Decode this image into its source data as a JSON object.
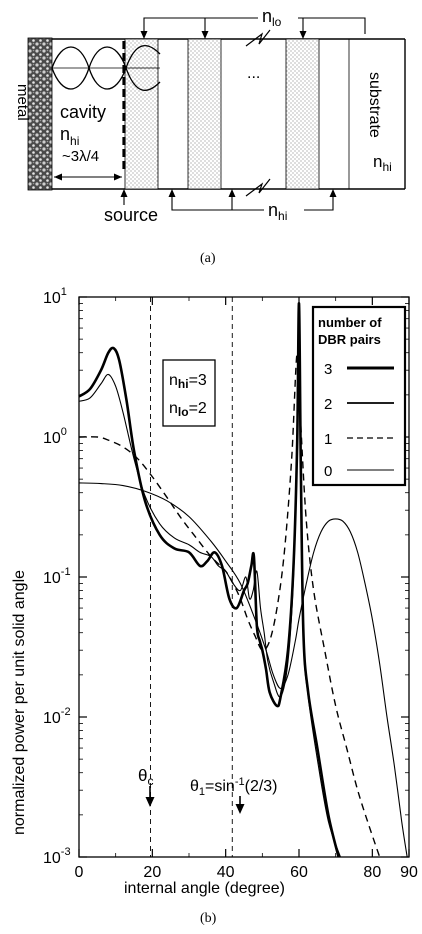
{
  "panel_a": {
    "metal": "metal",
    "substrate": "substrate",
    "cavity": "cavity",
    "cavity_index": "n",
    "cavity_index_sub": "hi",
    "cavity_length": "~3λ/4",
    "source": "source",
    "ellipsis": "...",
    "top_index": "n",
    "top_index_sub": "lo",
    "bottom_index": "n",
    "bottom_index_sub": "hi",
    "substrate_index": "n",
    "substrate_index_sub": "hi",
    "caption": "(a)"
  },
  "panel_b": {
    "caption": "(b)",
    "ylabel": "normalized power per unit solid angle",
    "xlabel": "internal angle (degree)",
    "x_ticks": [
      "0",
      "20",
      "40",
      "60",
      "80",
      "90"
    ],
    "y_ticks": [
      {
        "base": "10",
        "exp": "1"
      },
      {
        "base": "10",
        "exp": "0"
      },
      {
        "base": "10",
        "exp": "-1"
      },
      {
        "base": "10",
        "exp": "-2"
      },
      {
        "base": "10",
        "exp": "-3"
      }
    ],
    "param_box": {
      "line1_n": "n",
      "line1_sub": "hi",
      "line1_val": "=3",
      "line2_n": "n",
      "line2_sub": "lo",
      "line2_val": "=2"
    },
    "legend": {
      "title_line1": "number of",
      "title_line2": "DBR pairs",
      "entries": [
        "3",
        "2",
        "1",
        "0"
      ]
    },
    "annotations": {
      "theta_c": "θ",
      "theta_c_sub": "c",
      "theta1": "θ",
      "theta1_sub": "1",
      "theta1_eq": "=sin",
      "theta1_sup": "-1",
      "theta1_arg": "(2/3)"
    }
  },
  "chart_data": {
    "type": "line",
    "y_scale": "log",
    "xlabel": "internal angle (degree)",
    "ylabel": "normalized power per unit solid angle",
    "xlim": [
      0,
      90
    ],
    "ylim": [
      0.001,
      10
    ],
    "x_tick_values": [
      0,
      20,
      40,
      60,
      80,
      90
    ],
    "vlines": [
      19.5,
      41.8
    ],
    "series": [
      {
        "name": "3",
        "style": "thick",
        "x": [
          0,
          3,
          6,
          8,
          9.5,
          11,
          13,
          15,
          18,
          22,
          26,
          30,
          33,
          35,
          37,
          39,
          41,
          43,
          45,
          46,
          47,
          47.7,
          48.5,
          49.3,
          50,
          51,
          52,
          54,
          55,
          57,
          58.5,
          59.5,
          60,
          60.5,
          61.2,
          62.5,
          65,
          68,
          70.8
        ],
        "y": [
          1.95,
          2.2,
          3.0,
          4.0,
          4.3,
          3.5,
          1.8,
          0.8,
          0.35,
          0.2,
          0.16,
          0.15,
          0.12,
          0.13,
          0.15,
          0.12,
          0.07,
          0.06,
          0.08,
          0.09,
          0.12,
          0.14,
          0.045,
          0.035,
          0.03,
          0.022,
          0.015,
          0.012,
          0.014,
          0.03,
          0.12,
          0.9,
          9.0,
          0.6,
          0.04,
          0.015,
          0.006,
          0.002,
          0.001
        ]
      },
      {
        "name": "2",
        "style": "thin",
        "x": [
          0,
          3,
          6,
          8,
          10,
          12,
          15,
          18,
          22,
          26,
          30,
          33,
          36,
          38,
          40,
          42,
          44,
          45.5,
          46.5,
          47.5,
          48.5,
          49.5,
          50.5,
          51.5,
          53,
          55,
          57,
          58.5,
          59.5,
          60,
          60.5,
          61.2,
          62.5,
          65,
          68,
          71.3
        ],
        "y": [
          1.8,
          1.9,
          2.4,
          2.8,
          2.3,
          1.5,
          0.7,
          0.38,
          0.24,
          0.19,
          0.17,
          0.15,
          0.14,
          0.12,
          0.11,
          0.09,
          0.08,
          0.1,
          0.07,
          0.08,
          0.11,
          0.06,
          0.04,
          0.025,
          0.018,
          0.014,
          0.025,
          0.1,
          0.8,
          7.0,
          0.5,
          0.035,
          0.014,
          0.005,
          0.0018,
          0.001
        ]
      },
      {
        "name": "1",
        "style": "dashed",
        "x": [
          0,
          5,
          8,
          12,
          16,
          20,
          24,
          28,
          32,
          36,
          40,
          42,
          44,
          46,
          48,
          50,
          52,
          54,
          56,
          58,
          59.5,
          60.5,
          62,
          64,
          67,
          70,
          73,
          76,
          79,
          82
        ],
        "y": [
          1.0,
          1.0,
          0.95,
          0.85,
          0.7,
          0.52,
          0.37,
          0.26,
          0.19,
          0.14,
          0.11,
          0.09,
          0.07,
          0.05,
          0.038,
          0.03,
          0.035,
          0.06,
          0.15,
          0.7,
          4.0,
          1.2,
          0.25,
          0.08,
          0.03,
          0.012,
          0.006,
          0.003,
          0.0017,
          0.001
        ]
      },
      {
        "name": "0",
        "style": "thin",
        "x": [
          0,
          6,
          12,
          18,
          24,
          30,
          36,
          40,
          44,
          48,
          51,
          53,
          55,
          57,
          59,
          60,
          62,
          64,
          66,
          68,
          70,
          72,
          74,
          76,
          78,
          80,
          82,
          84,
          86,
          88,
          89.5
        ],
        "y": [
          0.47,
          0.465,
          0.45,
          0.41,
          0.35,
          0.27,
          0.18,
          0.13,
          0.09,
          0.05,
          0.03,
          0.02,
          0.016,
          0.02,
          0.035,
          0.05,
          0.09,
          0.15,
          0.21,
          0.25,
          0.26,
          0.25,
          0.21,
          0.15,
          0.09,
          0.05,
          0.024,
          0.01,
          0.0045,
          0.0018,
          0.001
        ]
      }
    ]
  }
}
